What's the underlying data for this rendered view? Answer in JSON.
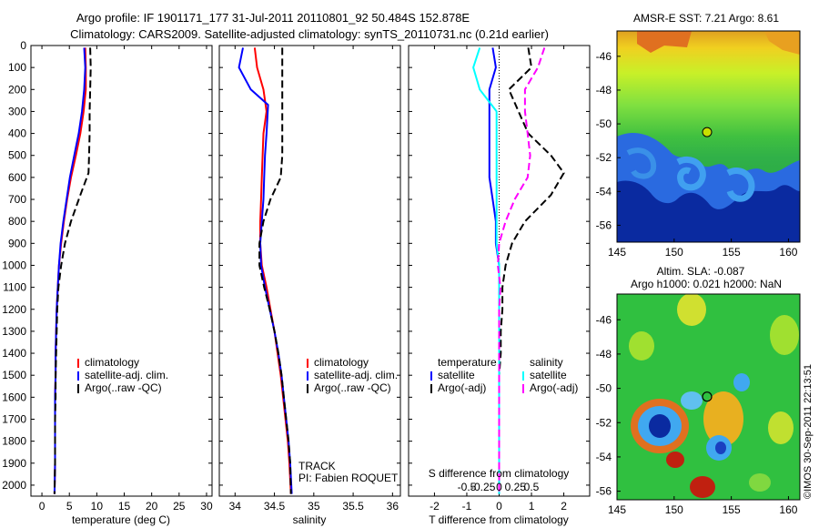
{
  "header": {
    "line1": "Argo profile: IF 1901171_177 31-Jul-2011 20110801_92 50.484S 152.878E",
    "line2": "Climatology: CARS2009. Satellite-adjusted climatology: synTS_20110731.nc (0.21d earlier)"
  },
  "colors": {
    "climatology": "#ff0000",
    "satellite": "#0000ff",
    "argo": "#000000",
    "sat_salinity": "#00ffff",
    "argo_salinity": "#ff00ff",
    "marker": "#c8e000"
  },
  "chart_data": [
    {
      "type": "line",
      "id": "temperature",
      "xlabel": "temperature (deg C)",
      "ylabel": "",
      "xlim": [
        -2,
        31
      ],
      "ylim": [
        2050,
        0
      ],
      "xticks": [
        "0",
        "5",
        "10",
        "15",
        "20",
        "25",
        "30"
      ],
      "xtick_values": [
        0,
        5,
        10,
        15,
        20,
        25,
        30
      ],
      "yticks": [
        "0",
        "100",
        "200",
        "300",
        "400",
        "500",
        "600",
        "700",
        "800",
        "900",
        "1000",
        "1100",
        "1200",
        "1300",
        "1400",
        "1500",
        "1600",
        "1700",
        "1800",
        "1900",
        "2000"
      ],
      "ytick_values": [
        0,
        100,
        200,
        300,
        400,
        500,
        600,
        700,
        800,
        900,
        1000,
        1100,
        1200,
        1300,
        1400,
        1500,
        1600,
        1700,
        1800,
        1900,
        2000
      ],
      "legend": [
        "climatology",
        "satellite-adj. clim.",
        "Argo(..raw -QC)"
      ],
      "series": [
        {
          "name": "climatology",
          "style": "solid",
          "color_key": "climatology",
          "x": [
            7.9,
            8.0,
            8.0,
            7.6,
            7.0,
            6.2,
            5.3,
            4.6,
            4.0,
            3.5,
            3.1,
            2.9,
            2.7,
            2.6,
            2.5,
            2.5,
            2.4,
            2.4,
            2.4,
            2.4,
            2.3
          ],
          "y": [
            10,
            100,
            200,
            300,
            400,
            500,
            600,
            700,
            800,
            900,
            1000,
            1100,
            1200,
            1300,
            1400,
            1500,
            1600,
            1700,
            1800,
            1900,
            2040
          ]
        },
        {
          "name": "satellite-adj. clim.",
          "style": "solid",
          "color_key": "satellite",
          "x": [
            7.7,
            7.9,
            7.7,
            7.3,
            6.7,
            5.9,
            5.1,
            4.5,
            3.9,
            3.4,
            3.1,
            2.9,
            2.7,
            2.6,
            2.5,
            2.5,
            2.4,
            2.4,
            2.4,
            2.4,
            2.3
          ],
          "y": [
            10,
            100,
            200,
            300,
            400,
            500,
            600,
            700,
            800,
            900,
            1000,
            1100,
            1200,
            1300,
            1400,
            1500,
            1600,
            1700,
            1800,
            1900,
            2040
          ]
        },
        {
          "name": "Argo(..raw -QC)",
          "style": "dash",
          "color_key": "argo",
          "x": [
            8.8,
            8.9,
            8.8,
            8.7,
            8.7,
            8.6,
            8.5,
            7.0,
            5.3,
            4.2,
            3.5,
            3.0,
            2.8,
            2.7,
            2.6,
            2.5,
            2.5,
            2.4,
            2.4,
            2.4,
            2.3
          ],
          "y": [
            10,
            100,
            200,
            300,
            400,
            500,
            580,
            680,
            800,
            900,
            1000,
            1100,
            1200,
            1300,
            1400,
            1500,
            1600,
            1700,
            1800,
            1900,
            2040
          ]
        }
      ]
    },
    {
      "type": "line",
      "id": "salinity",
      "xlabel": "salinity",
      "ylabel": "",
      "xlim": [
        33.8,
        36.1
      ],
      "ylim": [
        2050,
        0
      ],
      "xticks": [
        "34",
        "34.5",
        "35",
        "35.5",
        "36"
      ],
      "xtick_values": [
        34,
        34.5,
        35,
        35.5,
        36
      ],
      "legend": [
        "climatology",
        "satellite-adj. clim.",
        "Argo(..raw -QC)"
      ],
      "annotation_lines": [
        "TRACK",
        "PI: Fabien ROQUET"
      ],
      "series": [
        {
          "name": "climatology",
          "style": "solid",
          "color_key": "climatology",
          "x": [
            34.25,
            34.28,
            34.36,
            34.4,
            34.36,
            34.35,
            34.34,
            34.33,
            34.32,
            34.32,
            34.34,
            34.4,
            34.45,
            34.5,
            34.54,
            34.58,
            34.61,
            34.64,
            34.67,
            34.69,
            34.71
          ],
          "y": [
            10,
            100,
            200,
            300,
            400,
            500,
            600,
            700,
            800,
            900,
            1000,
            1100,
            1200,
            1300,
            1400,
            1500,
            1600,
            1700,
            1800,
            1900,
            2040
          ]
        },
        {
          "name": "satellite-adj. clim.",
          "style": "solid",
          "color_key": "satellite",
          "x": [
            34.1,
            34.05,
            34.2,
            34.42,
            34.4,
            34.38,
            34.37,
            34.36,
            34.34,
            34.32,
            34.33,
            34.38,
            34.44,
            34.5,
            34.55,
            34.59,
            34.62,
            34.65,
            34.68,
            34.7,
            34.72
          ],
          "y": [
            10,
            100,
            200,
            270,
            400,
            500,
            600,
            700,
            800,
            900,
            1000,
            1100,
            1200,
            1300,
            1400,
            1500,
            1600,
            1700,
            1800,
            1900,
            2040
          ]
        },
        {
          "name": "Argo(..raw -QC)",
          "style": "dash",
          "color_key": "argo",
          "x": [
            34.6,
            34.6,
            34.6,
            34.6,
            34.6,
            34.6,
            34.58,
            34.45,
            34.36,
            34.31,
            34.31,
            34.37,
            34.44,
            34.5,
            34.55,
            34.59,
            34.62,
            34.65,
            34.68,
            34.7,
            34.71
          ],
          "y": [
            10,
            100,
            200,
            300,
            400,
            500,
            600,
            700,
            800,
            900,
            1000,
            1100,
            1200,
            1300,
            1400,
            1500,
            1600,
            1700,
            1800,
            1900,
            2040
          ]
        }
      ]
    },
    {
      "type": "line",
      "id": "difference",
      "xlabel": "T difference from climatology",
      "xlabel_top": "S difference from climatology",
      "xlim": [
        -2.8,
        2.8
      ],
      "ylim": [
        2050,
        0
      ],
      "xticks": [
        "-2",
        "-1",
        "0",
        "1",
        "2"
      ],
      "xtick_values": [
        -2,
        -1,
        0,
        1,
        2
      ],
      "s_ticks": [
        "-0.5",
        "-0.25",
        "0",
        "0.25",
        "0.5"
      ],
      "s_tick_positions_T": [
        -2,
        -1,
        0,
        1,
        2
      ],
      "legend_temperature_title": "temperature",
      "legend_salinity_title": "salinity",
      "legend_temperature": [
        "satellite",
        "Argo(-adj)"
      ],
      "legend_salinity": [
        "satellite",
        "Argo(-adj)"
      ],
      "series": [
        {
          "name": "satellite",
          "group": "temperature",
          "style": "solid",
          "color_key": "satellite",
          "x": [
            -0.2,
            -0.1,
            -0.3,
            -0.3,
            -0.3,
            -0.3,
            -0.3,
            -0.2,
            -0.1,
            -0.1,
            0,
            0,
            0,
            0,
            0,
            0,
            0,
            0,
            0,
            0,
            0
          ],
          "y": [
            10,
            100,
            200,
            300,
            400,
            500,
            600,
            700,
            800,
            900,
            1000,
            1100,
            1200,
            1300,
            1400,
            1500,
            1600,
            1700,
            1800,
            1900,
            2040
          ]
        },
        {
          "name": "Argo(-adj)",
          "group": "temperature",
          "style": "dash",
          "color_key": "argo",
          "x": [
            0.9,
            1.0,
            0.3,
            0.6,
            0.9,
            1.6,
            2.0,
            1.6,
            0.8,
            0.4,
            0.2,
            0.1,
            0.1,
            0.05,
            0.05,
            0,
            0,
            0,
            0,
            0,
            0
          ],
          "y": [
            10,
            100,
            200,
            300,
            400,
            500,
            580,
            680,
            800,
            900,
            1000,
            1100,
            1200,
            1300,
            1400,
            1500,
            1600,
            1700,
            1800,
            1900,
            2040
          ]
        },
        {
          "name": "satellite",
          "group": "salinity",
          "style": "solid",
          "color_key": "sat_salinity",
          "x": [
            -0.15,
            -0.2,
            -0.15,
            -0.02,
            -0.02,
            -0.02,
            -0.02,
            -0.02,
            -0.02,
            -0.02,
            0,
            0,
            0,
            0,
            0,
            0,
            0,
            0,
            0,
            0,
            0
          ],
          "y": [
            10,
            100,
            200,
            300,
            400,
            500,
            600,
            700,
            800,
            900,
            1000,
            1100,
            1200,
            1300,
            1400,
            1500,
            1600,
            1700,
            1800,
            1900,
            2040
          ]
        },
        {
          "name": "Argo(-adj)",
          "group": "salinity",
          "style": "dash",
          "color_key": "argo_salinity",
          "x": [
            0.35,
            0.3,
            0.2,
            0.2,
            0.22,
            0.24,
            0.22,
            0.12,
            0.05,
            0,
            -0.01,
            0.01,
            0,
            0,
            0,
            0,
            0,
            0,
            0,
            0,
            0
          ],
          "y": [
            10,
            100,
            200,
            300,
            400,
            500,
            600,
            700,
            800,
            900,
            1000,
            1100,
            1200,
            1300,
            1400,
            1500,
            1600,
            1700,
            1800,
            1900,
            2040
          ]
        }
      ]
    },
    {
      "type": "heatmap",
      "id": "sst_map",
      "title": "AMSR-E SST: 7.21  Argo: 8.61",
      "xlim": [
        145,
        161
      ],
      "ylim": [
        -57,
        -44.5
      ],
      "xticks": [
        "145",
        "150",
        "155",
        "160"
      ],
      "xtick_values": [
        145,
        150,
        155,
        160
      ],
      "yticks": [
        "-46",
        "-48",
        "-50",
        "-52",
        "-54",
        "-56"
      ],
      "ytick_values": [
        -46,
        -48,
        -50,
        -52,
        -54,
        -56
      ],
      "marker": {
        "lon": 152.878,
        "lat": -50.484
      }
    },
    {
      "type": "heatmap",
      "id": "sla_map",
      "title_line1": "Altim. SLA: -0.087",
      "title_line2": "Argo h1000: 0.021 h2000: NaN",
      "xlim": [
        145,
        161
      ],
      "ylim": [
        -56.5,
        -44.5
      ],
      "xticks": [
        "145",
        "150",
        "155",
        "160"
      ],
      "xtick_values": [
        145,
        150,
        155,
        160
      ],
      "yticks": [
        "-46",
        "-48",
        "-50",
        "-52",
        "-54",
        "-56"
      ],
      "ytick_values": [
        -46,
        -48,
        -50,
        -52,
        -54,
        -56
      ],
      "marker": {
        "lon": 152.878,
        "lat": -50.484
      },
      "side_label": "©IMOS 30-Sep-2011 22:13:51"
    }
  ]
}
